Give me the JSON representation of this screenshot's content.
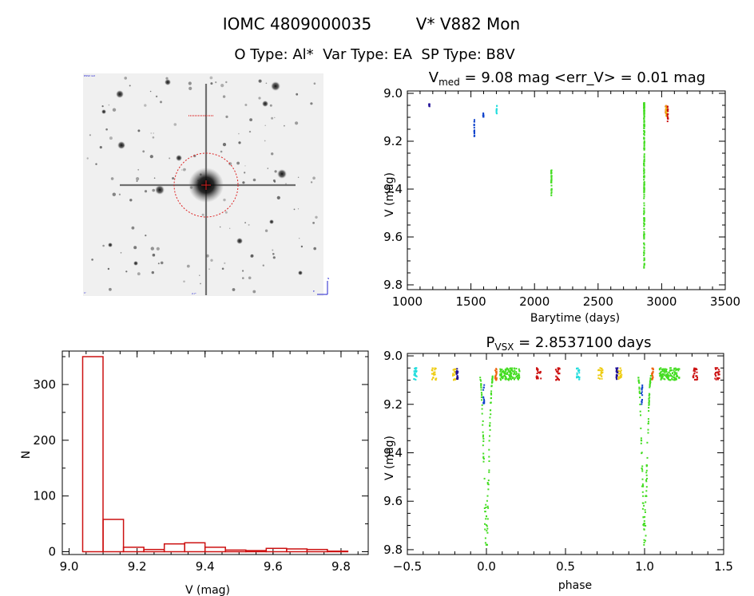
{
  "header": {
    "line1_left": "IOMC 4809000035",
    "line1_right": "V* V882 Mon",
    "line2": "O Type: Al*  Var Type: EA  SP Type: B8V"
  },
  "colors": {
    "hist": "#cc1111",
    "circle": "#dd2222",
    "green": "#44dd22",
    "red": "#cc1111",
    "yellow": "#eecc11",
    "cyan": "#22dddd",
    "blue": "#1144cc",
    "navy": "#221199",
    "orange": "#ee6611",
    "purple": "#772288"
  },
  "chart_data": [
    {
      "id": "lightcurve",
      "type": "scatter",
      "title_prefix": "V",
      "title_sub": "med",
      "title_rest": " = 9.08 mag <err_V> = 0.01 mag",
      "xlabel": "Barytime (days)",
      "ylabel": "V (mag)",
      "xlim": [
        1000,
        3500
      ],
      "ylim": [
        9.82,
        8.99
      ],
      "xticks": [
        "1000",
        "1500",
        "2000",
        "2500",
        "3000",
        "3500"
      ],
      "yticks": [
        "9.0",
        "9.2",
        "9.4",
        "9.6",
        "9.8"
      ],
      "series": [
        {
          "color": "navy",
          "x": [
            1170,
            1175,
            1180,
            1185
          ],
          "y": [
            9.04,
            9.06,
            9.08,
            9.1
          ]
        },
        {
          "color": "blue",
          "x": [
            1525,
            1528
          ],
          "y": [
            9.11,
            9.18
          ]
        },
        {
          "color": "blue",
          "x": [
            1595,
            1600
          ],
          "y": [
            9.08,
            9.1
          ]
        },
        {
          "color": "cyan",
          "x": [
            1700,
            1705
          ],
          "y": [
            9.05,
            9.09
          ]
        },
        {
          "color": "green",
          "x": [
            2130,
            2135
          ],
          "y": [
            9.32,
            9.43
          ]
        },
        {
          "color": "green",
          "x": [
            2860,
            2865
          ],
          "y": [
            9.04,
            9.76
          ]
        },
        {
          "color": "orange",
          "x": [
            3030,
            3035
          ],
          "y": [
            9.05,
            9.09
          ]
        },
        {
          "color": "yellow",
          "x": [
            3035,
            3040
          ],
          "y": [
            9.05,
            9.1
          ]
        },
        {
          "color": "red",
          "x": [
            3045,
            3050
          ],
          "y": [
            9.05,
            9.12
          ]
        }
      ]
    },
    {
      "id": "histogram",
      "type": "bar",
      "xlabel": "V (mag)",
      "ylabel": "N",
      "xlim": [
        8.98,
        9.88
      ],
      "ylim": [
        -5,
        360
      ],
      "xticks": [
        "9.0",
        "9.2",
        "9.4",
        "9.6",
        "9.8"
      ],
      "yticks": [
        "0",
        "100",
        "200",
        "300"
      ],
      "bin_edges": [
        9.04,
        9.1,
        9.16,
        9.22,
        9.28,
        9.34,
        9.4,
        9.46,
        9.52,
        9.58,
        9.64,
        9.7,
        9.76,
        9.82
      ],
      "counts": [
        350,
        58,
        8,
        4,
        14,
        16,
        8,
        3,
        2,
        6,
        5,
        4,
        1
      ]
    },
    {
      "id": "phased",
      "type": "scatter",
      "title_prefix": "P",
      "title_sub": "VSX",
      "title_rest": " = 2.8537100 days",
      "xlabel": "phase",
      "ylabel": "V (mag)",
      "xlim": [
        -0.5,
        1.5
      ],
      "ylim": [
        9.82,
        8.99
      ],
      "xticks": [
        "−0.5",
        "0.0",
        "0.5",
        "1.0",
        "1.5"
      ],
      "yticks": [
        "9.0",
        "9.2",
        "9.4",
        "9.6",
        "9.8"
      ],
      "groups": [
        {
          "color": "cyan",
          "phases": [
            -0.45,
            0.58
          ],
          "spread": 0.02
        },
        {
          "color": "yellow",
          "phases": [
            -0.33,
            -0.2,
            0.72,
            0.84
          ],
          "spread": 0.03
        },
        {
          "color": "navy",
          "phases": [
            -0.185,
            0.825
          ],
          "spread": 0.01
        },
        {
          "color": "red",
          "phases": [
            0.33,
            0.45,
            1.32,
            1.46
          ],
          "spread": 0.03
        },
        {
          "color": "green",
          "phases": [
            0.13,
            1.14
          ],
          "spread": 0.09
        },
        {
          "color": "orange",
          "phases": [
            0.06,
            1.05
          ],
          "spread": 0.01
        }
      ],
      "eclipse": [
        {
          "center": 0.0,
          "color": "green"
        },
        {
          "center": 1.0,
          "color": "green"
        }
      ],
      "eclipse_blue": [
        {
          "center": -0.02,
          "color": "blue"
        },
        {
          "center": 0.98,
          "color": "blue"
        }
      ]
    }
  ],
  "image_panel": {
    "corner_labels": [
      "DSS2 red",
      "2.7'",
      "1'",
      "N",
      "E"
    ]
  }
}
